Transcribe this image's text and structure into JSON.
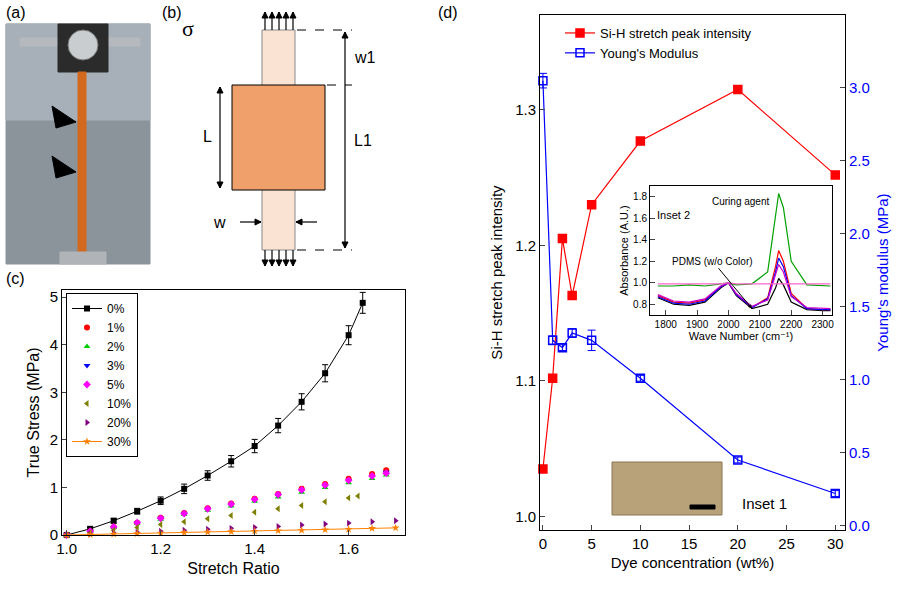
{
  "panel_letters": [
    "(a)",
    "(b)",
    "(c)",
    "(d)"
  ],
  "diagram": {
    "stress": "σ",
    "width_top": "w1",
    "length": "L",
    "total_length": "L1",
    "width": "w"
  },
  "inset_1": {
    "label": "Inset 1"
  },
  "chart_data": [
    {
      "type": "scatter",
      "x_label": "Stretch Ratio",
      "y_label": "True Stress (MPa)",
      "xlim": [
        0.99,
        1.72
      ],
      "xticks": [
        {
          "value": 1.0,
          "label": "1.0"
        },
        1.2,
        1.4,
        1.6
      ],
      "ylim": [
        0,
        5.15
      ],
      "yticks": [
        0,
        1,
        2,
        3,
        4,
        5
      ],
      "grid": false,
      "legend": "upper left",
      "series": [
        {
          "name": "0%",
          "color": "#000000",
          "marker": "square",
          "line_style": "solid",
          "x": [
            1.0,
            1.05,
            1.1,
            1.15,
            1.2,
            1.25,
            1.3,
            1.35,
            1.4,
            1.45,
            1.5,
            1.55,
            1.6,
            1.63
          ],
          "values": [
            0,
            0.13,
            0.3,
            0.5,
            0.72,
            0.97,
            1.25,
            1.55,
            1.87,
            2.3,
            2.8,
            3.4,
            4.2,
            4.88
          ],
          "error": [
            0.01,
            0.03,
            0.05,
            0.06,
            0.08,
            0.1,
            0.1,
            0.12,
            0.14,
            0.15,
            0.17,
            0.18,
            0.2,
            0.22
          ]
        },
        {
          "name": "1%",
          "color": "#ff0000",
          "marker": "circle",
          "line_style": "none",
          "x": [
            1.0,
            1.05,
            1.1,
            1.15,
            1.2,
            1.25,
            1.3,
            1.35,
            1.4,
            1.45,
            1.5,
            1.55,
            1.6,
            1.65,
            1.68
          ],
          "values": [
            0,
            0.08,
            0.17,
            0.26,
            0.36,
            0.46,
            0.56,
            0.66,
            0.76,
            0.86,
            0.97,
            1.07,
            1.18,
            1.28,
            1.36
          ]
        },
        {
          "name": "2%",
          "color": "#00cc00",
          "marker": "triangle-up",
          "line_style": "none",
          "x": [
            1.0,
            1.05,
            1.1,
            1.15,
            1.2,
            1.25,
            1.3,
            1.35,
            1.4,
            1.45,
            1.5,
            1.55,
            1.6,
            1.65,
            1.68
          ],
          "values": [
            0,
            0.08,
            0.16,
            0.24,
            0.33,
            0.43,
            0.52,
            0.61,
            0.71,
            0.8,
            0.9,
            1.0,
            1.1,
            1.19,
            1.26
          ]
        },
        {
          "name": "3%",
          "color": "#0000ff",
          "marker": "triangle-down",
          "line_style": "none",
          "x": [
            1.0,
            1.05,
            1.1,
            1.15,
            1.2,
            1.25,
            1.3,
            1.35,
            1.4,
            1.45,
            1.5,
            1.55,
            1.6,
            1.65,
            1.68
          ],
          "values": [
            0,
            0.08,
            0.16,
            0.25,
            0.35,
            0.44,
            0.54,
            0.63,
            0.73,
            0.83,
            0.93,
            1.03,
            1.14,
            1.23,
            1.32
          ]
        },
        {
          "name": "5%",
          "color": "#ff00ff",
          "marker": "diamond",
          "line_style": "none",
          "x": [
            1.0,
            1.05,
            1.1,
            1.15,
            1.2,
            1.25,
            1.3,
            1.35,
            1.4,
            1.45,
            1.5,
            1.55,
            1.6,
            1.65,
            1.68
          ],
          "values": [
            0,
            0.08,
            0.17,
            0.26,
            0.35,
            0.45,
            0.55,
            0.65,
            0.75,
            0.85,
            0.95,
            1.05,
            1.15,
            1.24,
            1.3
          ]
        },
        {
          "name": "10%",
          "color": "#808000",
          "marker": "triangle-left",
          "line_style": "none",
          "x": [
            1.0,
            1.05,
            1.1,
            1.15,
            1.2,
            1.25,
            1.3,
            1.35,
            1.4,
            1.45,
            1.5,
            1.55,
            1.6,
            1.62
          ],
          "values": [
            0,
            0.05,
            0.1,
            0.16,
            0.22,
            0.28,
            0.34,
            0.41,
            0.48,
            0.55,
            0.62,
            0.7,
            0.78,
            0.82
          ]
        },
        {
          "name": "20%",
          "color": "#800080",
          "marker": "triangle-right",
          "line_style": "none",
          "x": [
            1.0,
            1.05,
            1.1,
            1.15,
            1.2,
            1.25,
            1.3,
            1.35,
            1.4,
            1.45,
            1.5,
            1.55,
            1.6,
            1.65,
            1.7
          ],
          "values": [
            0,
            0.02,
            0.04,
            0.06,
            0.08,
            0.1,
            0.12,
            0.14,
            0.16,
            0.18,
            0.21,
            0.23,
            0.25,
            0.28,
            0.3
          ]
        },
        {
          "name": "30%",
          "color": "#ff8000",
          "marker": "star",
          "line_style": "solid",
          "x": [
            1.0,
            1.05,
            1.1,
            1.15,
            1.2,
            1.25,
            1.3,
            1.35,
            1.4,
            1.45,
            1.5,
            1.55,
            1.6,
            1.65,
            1.7
          ],
          "values": [
            0,
            0.01,
            0.02,
            0.03,
            0.04,
            0.05,
            0.06,
            0.07,
            0.08,
            0.09,
            0.1,
            0.11,
            0.12,
            0.14,
            0.15
          ]
        }
      ]
    },
    {
      "type": "line",
      "x_label": "Dye concentration (wt%)",
      "y_label": "Si-H stretch peak intensity",
      "y2_label": "Young's modulus (MPa)",
      "x": [
        0,
        1,
        2,
        3,
        5,
        10,
        20,
        30
      ],
      "xlim": [
        -0.3,
        31
      ],
      "xticks": [
        0,
        5,
        10,
        15,
        20,
        25,
        30
      ],
      "ylim": [
        0.99,
        1.37
      ],
      "yticks": [
        {
          "value": 1.0,
          "label": "1.0"
        },
        1.1,
        1.2,
        1.3
      ],
      "y2lim": [
        -0.03,
        3.5
      ],
      "y2ticks": [
        {
          "value": 0,
          "label": "0.0"
        },
        0.5,
        {
          "value": 1.0,
          "label": "1.0"
        },
        1.5,
        {
          "value": 2.0,
          "label": "2.0"
        },
        2.5,
        {
          "value": 3.0,
          "label": "3.0"
        }
      ],
      "grid": false,
      "legend": "upper left",
      "series": [
        {
          "name": "Si-H stretch peak intensity",
          "color": "#ff0000",
          "marker": "square",
          "line_style": "solid",
          "values": [
            1.035,
            1.102,
            1.205,
            1.163,
            1.23,
            1.277,
            1.315,
            1.252
          ]
        },
        {
          "name": "Young's Modulus",
          "color": "#0000ff",
          "marker": "square-open",
          "line_style": "solid",
          "axis": "y2",
          "values": [
            3.05,
            1.27,
            1.22,
            1.32,
            1.27,
            1.01,
            0.45,
            0.22
          ],
          "error": [
            0.05,
            0.03,
            0.02,
            0.03,
            0.07,
            0.02,
            0.02,
            0.02
          ]
        }
      ]
    },
    {
      "type": "line",
      "title": "Inset 2",
      "x_label": "Wave Number (cm⁻¹)",
      "y_label": "Absorbance (A.U.)",
      "x": [
        1775,
        1825,
        1875,
        1925,
        1975,
        2000,
        2025,
        2075,
        2125,
        2150,
        2160,
        2175,
        2200,
        2250,
        2300,
        2325
      ],
      "xlim": [
        1750,
        2330
      ],
      "xticks": [
        1800,
        1900,
        2000,
        2100,
        2200,
        2300
      ],
      "ylim": [
        0.7,
        1.9
      ],
      "yticks": [
        0.8,
        {
          "value": 1.0,
          "label": "1.0"
        },
        1.2,
        1.4,
        1.6,
        1.8
      ],
      "grid": false,
      "series": [
        {
          "name": "Curing agent",
          "color": "#00a000",
          "marker": "none",
          "line_style": "solid",
          "values": [
            0.97,
            0.97,
            0.98,
            0.97,
            0.99,
            1.0,
            0.98,
            0.99,
            1.1,
            1.6,
            1.83,
            1.7,
            1.2,
            0.98,
            0.97,
            0.97
          ]
        },
        {
          "name": "PDMS (w/o Color)",
          "color": "#000000",
          "marker": "none",
          "line_style": "solid",
          "values": [
            0.86,
            0.8,
            0.79,
            0.82,
            0.95,
            1.0,
            0.88,
            0.76,
            0.8,
            0.95,
            1.04,
            0.98,
            0.82,
            0.75,
            0.74,
            0.74
          ]
        },
        {
          "color": "#ff0000",
          "marker": "none",
          "line_style": "solid",
          "values": [
            0.88,
            0.82,
            0.81,
            0.84,
            0.96,
            1.0,
            0.89,
            0.77,
            0.86,
            1.15,
            1.3,
            1.2,
            0.9,
            0.76,
            0.75,
            0.75
          ]
        },
        {
          "color": "#0000ff",
          "marker": "none",
          "line_style": "solid",
          "values": [
            0.87,
            0.81,
            0.8,
            0.83,
            0.96,
            1.0,
            0.89,
            0.77,
            0.85,
            1.1,
            1.23,
            1.15,
            0.88,
            0.76,
            0.75,
            0.75
          ]
        },
        {
          "color": "#cc00cc",
          "marker": "none",
          "line_style": "solid",
          "values": [
            0.89,
            0.83,
            0.82,
            0.85,
            0.97,
            1.0,
            0.9,
            0.78,
            0.84,
            1.06,
            1.17,
            1.1,
            0.87,
            0.77,
            0.76,
            0.76
          ]
        },
        {
          "color": "#ff66cc",
          "marker": "none",
          "line_style": "solid",
          "values": [
            0.99,
            0.99,
            0.99,
            0.99,
            0.99,
            1.0,
            0.99,
            0.99,
            0.99,
            0.99,
            0.99,
            0.99,
            0.99,
            0.99,
            0.99,
            0.99
          ]
        }
      ]
    }
  ]
}
